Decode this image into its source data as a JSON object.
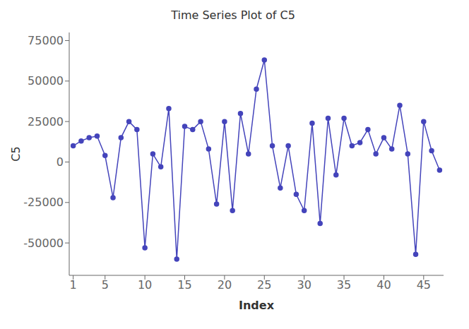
{
  "chart_data": {
    "type": "line",
    "title": "Time Series Plot of C5",
    "xlabel": "Index",
    "ylabel": "C5",
    "x": [
      1,
      2,
      3,
      4,
      5,
      6,
      7,
      8,
      9,
      10,
      11,
      12,
      13,
      14,
      15,
      16,
      17,
      18,
      19,
      20,
      21,
      22,
      23,
      24,
      25,
      26,
      27,
      28,
      29,
      30,
      31,
      32,
      33,
      34,
      35,
      36,
      37,
      38,
      39,
      40,
      41,
      42,
      43,
      44,
      45,
      46,
      47
    ],
    "values": [
      10000,
      13000,
      15000,
      16000,
      4000,
      -22000,
      15000,
      25000,
      20000,
      -53000,
      5000,
      -3000,
      33000,
      -60000,
      22000,
      20000,
      25000,
      8000,
      -26000,
      25000,
      -30000,
      30000,
      5000,
      45000,
      63000,
      10000,
      -16000,
      10000,
      -20000,
      -30000,
      24000,
      -38000,
      27000,
      -8000,
      27000,
      10000,
      12000,
      20000,
      5000,
      15000,
      8000,
      35000,
      5000,
      -57000,
      25000,
      7000,
      -5000
    ],
    "color": "#4444bb",
    "marker": "circle",
    "xlim": [
      0.5,
      47.5
    ],
    "ylim": [
      -70000,
      80000
    ],
    "xticks": [
      1,
      5,
      10,
      15,
      20,
      25,
      30,
      35,
      40,
      45
    ],
    "yticks": [
      -50000,
      -25000,
      0,
      25000,
      50000,
      75000
    ],
    "grid": false
  }
}
